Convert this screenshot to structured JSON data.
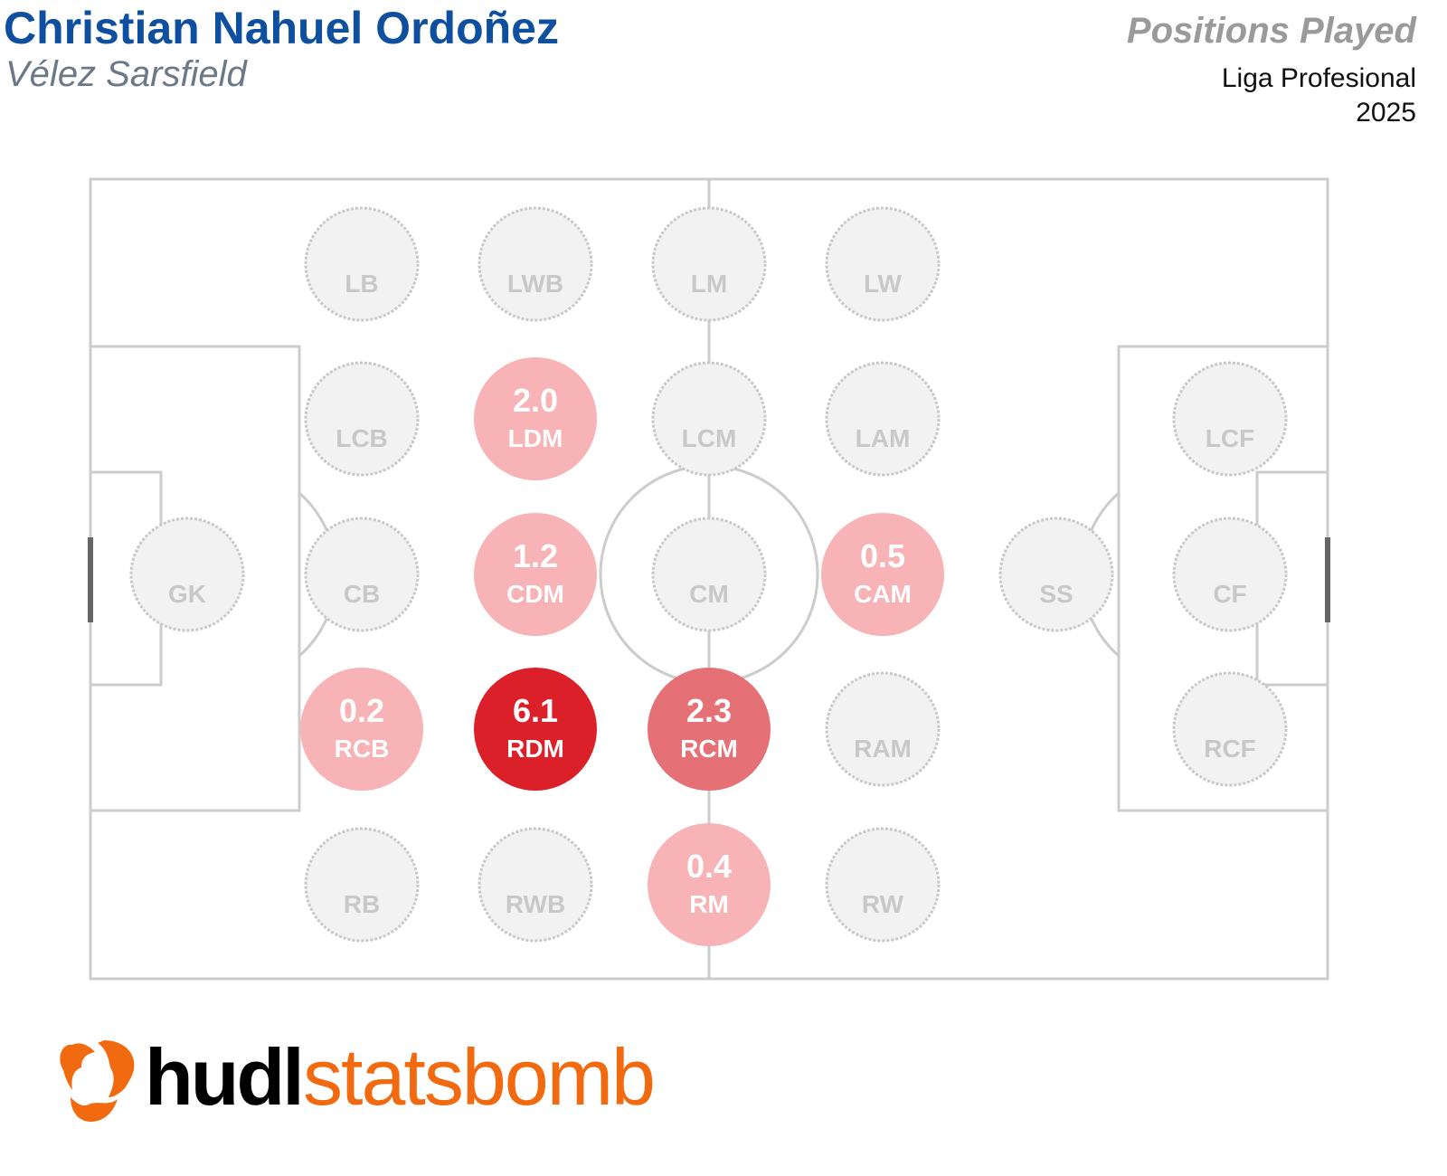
{
  "header": {
    "player_name": "Christian Nahuel Ordoñez",
    "team": "Vélez Sarsfield",
    "chart_title": "Positions Played",
    "competition": "Liga Profesional",
    "season": "2025"
  },
  "colors": {
    "title": "#0e4fa0",
    "high": "#dc2029",
    "mid": "#e57076",
    "low": "#f7b3b6",
    "inactive_fill": "#f2f2f2",
    "pitch_lines": "#cccccc",
    "logo_orange": "#f26a10"
  },
  "chart_data": {
    "type": "heatmap",
    "title": "Positions Played",
    "positions": [
      {
        "pos": "GK",
        "value": null
      },
      {
        "pos": "LB",
        "value": null
      },
      {
        "pos": "LCB",
        "value": null
      },
      {
        "pos": "CB",
        "value": null
      },
      {
        "pos": "RCB",
        "value": 0.2
      },
      {
        "pos": "RB",
        "value": null
      },
      {
        "pos": "LWB",
        "value": null
      },
      {
        "pos": "LDM",
        "value": 2.0
      },
      {
        "pos": "CDM",
        "value": 1.2
      },
      {
        "pos": "RDM",
        "value": 6.1
      },
      {
        "pos": "RWB",
        "value": null
      },
      {
        "pos": "LM",
        "value": null
      },
      {
        "pos": "LCM",
        "value": null
      },
      {
        "pos": "CM",
        "value": null
      },
      {
        "pos": "RCM",
        "value": 2.3
      },
      {
        "pos": "RM",
        "value": 0.4
      },
      {
        "pos": "LW",
        "value": null
      },
      {
        "pos": "LAM",
        "value": null
      },
      {
        "pos": "CAM",
        "value": 0.5
      },
      {
        "pos": "RAM",
        "value": null
      },
      {
        "pos": "RW",
        "value": null
      },
      {
        "pos": "SS",
        "value": null
      },
      {
        "pos": "LCF",
        "value": null
      },
      {
        "pos": "CF",
        "value": null
      },
      {
        "pos": "RCF",
        "value": null
      }
    ]
  },
  "logo": {
    "part1": "hudl",
    "part2": "statsbomb"
  }
}
